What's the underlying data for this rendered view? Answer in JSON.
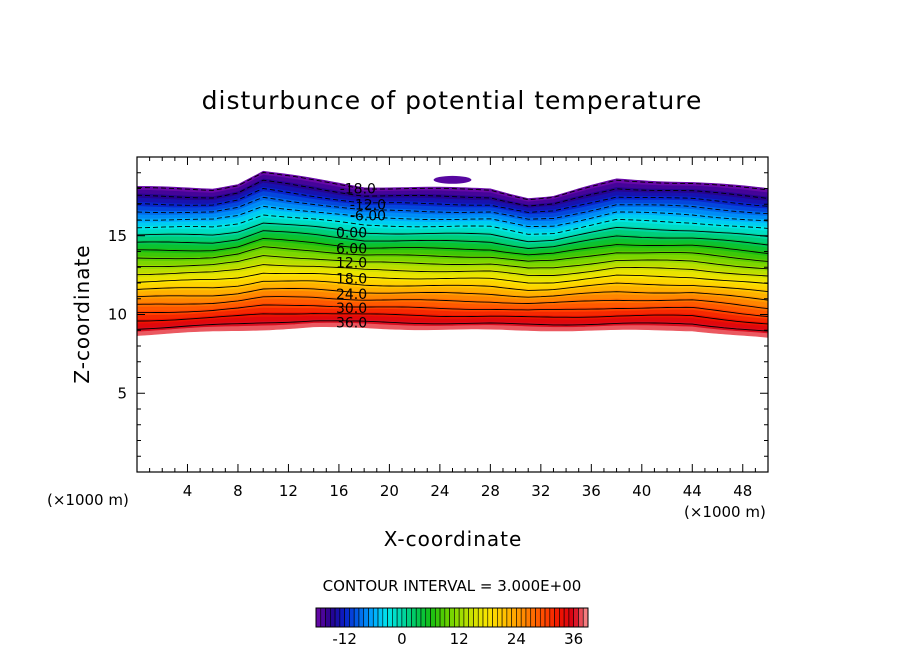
{
  "chart_data": {
    "type": "heatmap",
    "title": "disturbunce of potential temperature",
    "xlabel": "X-coordinate",
    "ylabel": "Z-coordinate",
    "x_unit_label_left": "(×1000 m)",
    "x_unit_label_right": "(×1000 m)",
    "xlim": [
      0,
      50
    ],
    "ylim": [
      0,
      20
    ],
    "x_ticks": [
      4,
      8,
      12,
      16,
      20,
      24,
      28,
      32,
      36,
      40,
      44,
      48
    ],
    "y_ticks": [
      5,
      10,
      15
    ],
    "contour_interval_label": "CONTOUR INTERVAL = 3.000E+00",
    "contour_interval": 3,
    "contour_labels": [
      {
        "text": "-18.0",
        "value": -18,
        "x": 17.5,
        "z": 18.0
      },
      {
        "text": "-12.0",
        "value": -12,
        "x": 18.3,
        "z": 17.0
      },
      {
        "text": "-6.00",
        "value": -6,
        "x": 18.3,
        "z": 16.3
      },
      {
        "text": "0.00",
        "value": 0,
        "x": 17.0,
        "z": 15.2
      },
      {
        "text": "6.00",
        "value": 6,
        "x": 17.0,
        "z": 14.2
      },
      {
        "text": "12.0",
        "value": 12,
        "x": 17.0,
        "z": 13.3
      },
      {
        "text": "18.0",
        "value": 18,
        "x": 17.0,
        "z": 12.3
      },
      {
        "text": "24.0",
        "value": 24,
        "x": 17.0,
        "z": 11.3
      },
      {
        "text": "30.0",
        "value": 30,
        "x": 17.0,
        "z": 10.4
      },
      {
        "text": "36.0",
        "value": 36,
        "x": 17.0,
        "z": 9.5
      }
    ],
    "layer_top_z": [
      [
        0,
        18.1
      ],
      [
        6,
        18.0
      ],
      [
        8,
        18.3
      ],
      [
        10,
        19.1
      ],
      [
        14,
        18.6
      ],
      [
        18,
        18.1
      ],
      [
        28,
        18.0
      ],
      [
        31,
        17.4
      ],
      [
        33,
        17.5
      ],
      [
        38,
        18.6
      ],
      [
        44,
        18.4
      ],
      [
        50,
        18.0
      ]
    ],
    "layer_bottom_z": [
      [
        0,
        8.7
      ],
      [
        14,
        9.2
      ],
      [
        20,
        9.1
      ],
      [
        30,
        9.0
      ],
      [
        44,
        9.0
      ],
      [
        50,
        8.5
      ]
    ],
    "isolated_patch": {
      "x": [
        23.5,
        26.5
      ],
      "z": [
        18.3,
        18.8
      ]
    },
    "colorbar": {
      "min": -18,
      "max": 39,
      "tick_labels": [
        "-12",
        "0",
        "12",
        "24",
        "36"
      ],
      "tick_values": [
        -12,
        0,
        12,
        24,
        36
      ]
    }
  }
}
